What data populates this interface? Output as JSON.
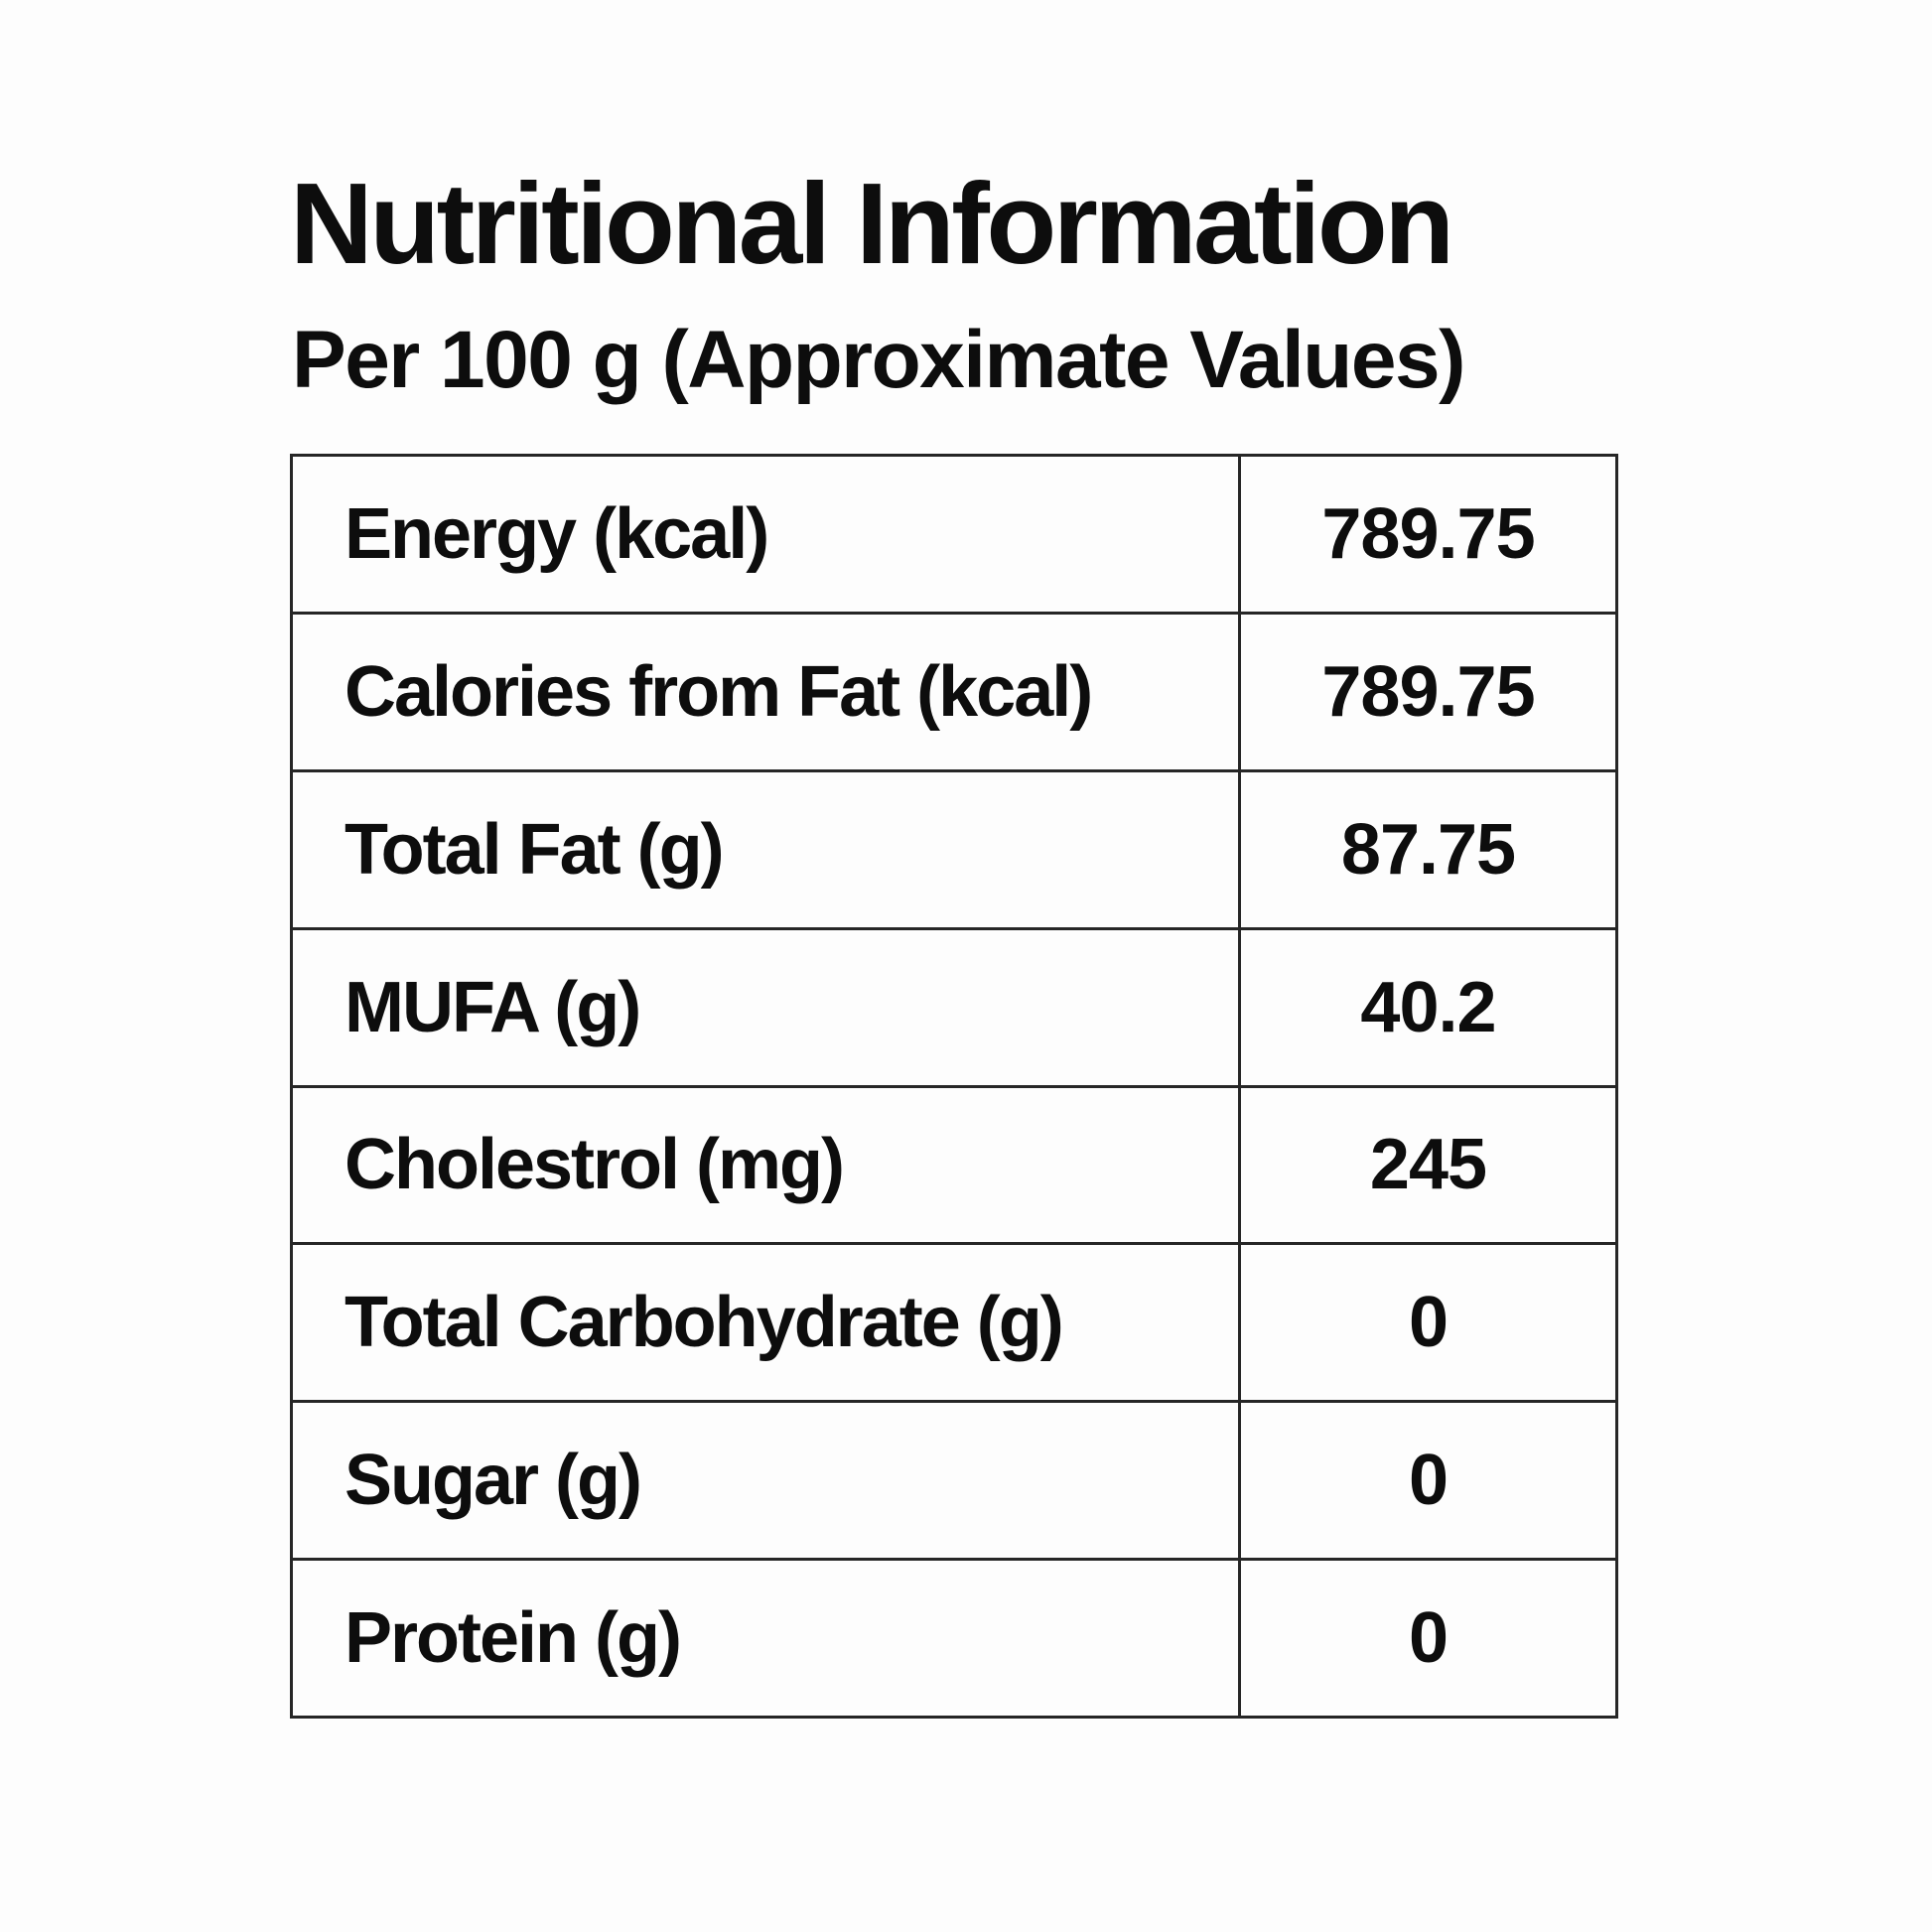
{
  "header": {
    "title": "Nutritional Information",
    "subtitle": "Per 100 g (Approximate Values)"
  },
  "table": {
    "rows": [
      {
        "label": "Energy (kcal)",
        "value": "789.75"
      },
      {
        "label": "Calories from Fat (kcal)",
        "value": "789.75"
      },
      {
        "label": "Total Fat (g)",
        "value": "87.75"
      },
      {
        "label": "MUFA (g)",
        "value": "40.2"
      },
      {
        "label": "Cholestrol (mg)",
        "value": "245"
      },
      {
        "label": "Total Carbohydrate (g)",
        "value": "0"
      },
      {
        "label": "Sugar (g)",
        "value": "0"
      },
      {
        "label": "Protein (g)",
        "value": "0"
      }
    ]
  },
  "colors": {
    "background": "#fdfdfd",
    "text": "#0d0d0d",
    "border": "#262626"
  }
}
